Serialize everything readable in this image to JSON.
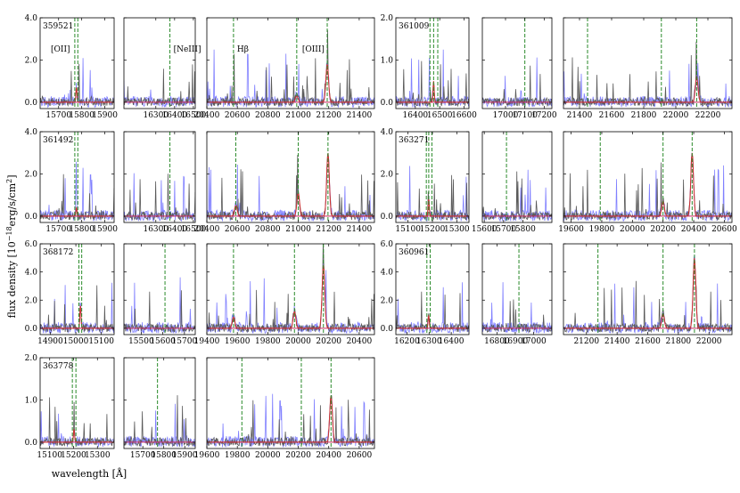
{
  "chart_data": {
    "type": "line",
    "ylabel_base": "flux density [10",
    "ylabel_exp": "−18",
    "ylabel_units": "erg/s/cm",
    "ylabel_sq": "2",
    "ylabel_close": "]",
    "xlabel": "wavelength [Å]",
    "series_colors": {
      "flux": "#5a5a5a",
      "error": "#8080ff",
      "model": "#d03030",
      "zero": "#cc2a60",
      "line_marker": "#2a8a2a"
    },
    "rows": [
      {
        "id": "359521",
        "ylim": [
          -0.3,
          4.0
        ],
        "yticks": [
          "0.0",
          "2.0",
          "4.0"
        ],
        "yvals": [
          0,
          2,
          4
        ],
        "panels": [
          {
            "xlim": [
              15620,
              15940
            ],
            "xticks": [
              15700,
              15800,
              15900
            ],
            "markers": [
              15770,
              15783
            ],
            "marker_label": "[OII]",
            "peaks": [
              {
                "x": 15777,
                "h": 0.7
              }
            ]
          },
          {
            "xlim": [
              16130,
              16510
            ],
            "xticks": [
              16300,
              16400,
              16500
            ],
            "markers": [
              16375
            ],
            "marker_label": "[NeIII]",
            "peaks": []
          },
          {
            "xlim": [
              20400,
              21500
            ],
            "xticks": [
              20400,
              20600,
              20800,
              21000,
              21200,
              21400
            ],
            "markers": [
              20575,
              20990,
              21190
            ],
            "marker_label": "Hβ",
            "marker_label2": "[OIII]",
            "peaks": [
              {
                "x": 20990,
                "h": 0.3
              },
              {
                "x": 21190,
                "h": 1.8
              }
            ]
          }
        ]
      },
      {
        "id": "361009",
        "ylim": [
          -0.15,
          2.0
        ],
        "yticks": [
          "0.0",
          "1.0",
          "2.0"
        ],
        "yvals": [
          0,
          1,
          2
        ],
        "panels": [
          {
            "xlim": [
              16320,
              16620
            ],
            "xticks": [
              16400,
              16500,
              16600
            ],
            "markers": [
              16460,
              16475,
              16492
            ],
            "peaks": [
              {
                "x": 16475,
                "h": 0.5
              }
            ]
          },
          {
            "xlim": [
              16880,
              17240
            ],
            "xticks": [
              17000,
              17100,
              17200
            ],
            "markers": [
              17100
            ],
            "peaks": []
          },
          {
            "xlim": [
              21300,
              22350
            ],
            "xticks": [
              21400,
              21600,
              21800,
              22000,
              22200
            ],
            "markers": [
              21450,
              21910,
              22130
            ],
            "peaks": [
              {
                "x": 22130,
                "h": 0.6
              }
            ]
          }
        ]
      },
      {
        "id": "361492",
        "ylim": [
          -0.3,
          4.0
        ],
        "yticks": [
          "0.0",
          "2.0",
          "4.0"
        ],
        "yvals": [
          0,
          2,
          4
        ],
        "panels": [
          {
            "xlim": [
              15620,
              15940
            ],
            "xticks": [
              15700,
              15800,
              15900
            ],
            "markers": [
              15770,
              15783
            ],
            "peaks": [
              {
                "x": 15777,
                "h": 0.4
              }
            ]
          },
          {
            "xlim": [
              16130,
              16510
            ],
            "xticks": [
              16300,
              16400,
              16500
            ],
            "markers": [
              16375
            ],
            "peaks": []
          },
          {
            "xlim": [
              20400,
              21500
            ],
            "xticks": [
              20400,
              20600,
              20800,
              21000,
              21200,
              21400
            ],
            "markers": [
              20590,
              21000,
              21195
            ],
            "peaks": [
              {
                "x": 20590,
                "h": 0.5
              },
              {
                "x": 21000,
                "h": 1.1
              },
              {
                "x": 21195,
                "h": 3.0
              }
            ]
          }
        ]
      },
      {
        "id": "363271",
        "ylim": [
          -0.3,
          4.0
        ],
        "yticks": [
          "0.0",
          "2.0",
          "4.0"
        ],
        "yvals": [
          0,
          2,
          4
        ],
        "panels": [
          {
            "xlim": [
              15050,
              15350
            ],
            "xticks": [
              15100,
              15200,
              15300
            ],
            "markers": [
              15175,
              15185,
              15198
            ],
            "peaks": [
              {
                "x": 15185,
                "h": 0.8
              }
            ]
          },
          {
            "xlim": [
              15590,
              15950
            ],
            "xticks": [
              15600,
              15700,
              15800
            ],
            "markers": [
              15715
            ],
            "peaks": []
          },
          {
            "xlim": [
              19550,
              20650
            ],
            "xticks": [
              19600,
              19800,
              20000,
              20200,
              20400,
              20600
            ],
            "markers": [
              19790,
              20200,
              20390
            ],
            "peaks": [
              {
                "x": 20200,
                "h": 0.7
              },
              {
                "x": 20390,
                "h": 3.0
              }
            ]
          }
        ]
      },
      {
        "id": "368172",
        "ylim": [
          -0.45,
          6.0
        ],
        "yticks": [
          "0.0",
          "2.0",
          "4.0",
          "6.0"
        ],
        "yvals": [
          0,
          2,
          4,
          6
        ],
        "panels": [
          {
            "xlim": [
              14860,
              15150
            ],
            "xticks": [
              14900,
              15000,
              15100
            ],
            "markers": [
              15012,
              15023
            ],
            "peaks": [
              {
                "x": 15018,
                "h": 1.6
              }
            ]
          },
          {
            "xlim": [
              15420,
              15750
            ],
            "xticks": [
              15500,
              15600,
              15700
            ],
            "markers": [
              15610
            ],
            "peaks": []
          },
          {
            "xlim": [
              19400,
              20500
            ],
            "xticks": [
              19400,
              19600,
              19800,
              20000,
              20200,
              20400
            ],
            "markers": [
              19575,
              19975,
              20165
            ],
            "peaks": [
              {
                "x": 19575,
                "h": 0.8
              },
              {
                "x": 19975,
                "h": 1.2
              },
              {
                "x": 20165,
                "h": 4.5
              }
            ]
          }
        ]
      },
      {
        "id": "360961",
        "ylim": [
          -0.45,
          6.0
        ],
        "yticks": [
          "0.0",
          "2.0",
          "4.0",
          "6.0"
        ],
        "yvals": [
          0,
          2,
          4,
          6
        ],
        "panels": [
          {
            "xlim": [
              16150,
              16480
            ],
            "xticks": [
              16200,
              16300,
              16400
            ],
            "markers": [
              16290,
              16305
            ],
            "peaks": [
              {
                "x": 16298,
                "h": 0.9
              }
            ]
          },
          {
            "xlim": [
              16720,
              17100
            ],
            "xticks": [
              16800,
              16900,
              17000
            ],
            "markers": [
              16920
            ],
            "peaks": []
          },
          {
            "xlim": [
              21050,
              22150
            ],
            "xticks": [
              21200,
              21400,
              21600,
              21800,
              22000
            ],
            "markers": [
              21275,
              21700,
              21905
            ],
            "peaks": [
              {
                "x": 21700,
                "h": 1.0
              },
              {
                "x": 21905,
                "h": 5.0
              }
            ]
          }
        ]
      },
      {
        "id": "363778",
        "ylim": [
          -0.15,
          2.0
        ],
        "yticks": [
          "0.0",
          "1.0",
          "2.0"
        ],
        "yvals": [
          0,
          1,
          2
        ],
        "panels": [
          {
            "xlim": [
              15060,
              15370
            ],
            "xticks": [
              15100,
              15200,
              15300
            ],
            "markers": [
              15195,
              15210
            ],
            "peaks": [
              {
                "x": 15202,
                "h": 0.3
              }
            ]
          },
          {
            "xlim": [
              15610,
              15950
            ],
            "xticks": [
              15700,
              15800,
              15900
            ],
            "markers": [
              15770
            ],
            "peaks": []
          },
          {
            "xlim": [
              19600,
              20700
            ],
            "xticks": [
              19600,
              19800,
              20000,
              20200,
              20400,
              20600
            ],
            "markers": [
              19830,
              20220,
              20415
            ],
            "peaks": [
              {
                "x": 20415,
                "h": 1.1
              }
            ]
          }
        ]
      }
    ]
  }
}
